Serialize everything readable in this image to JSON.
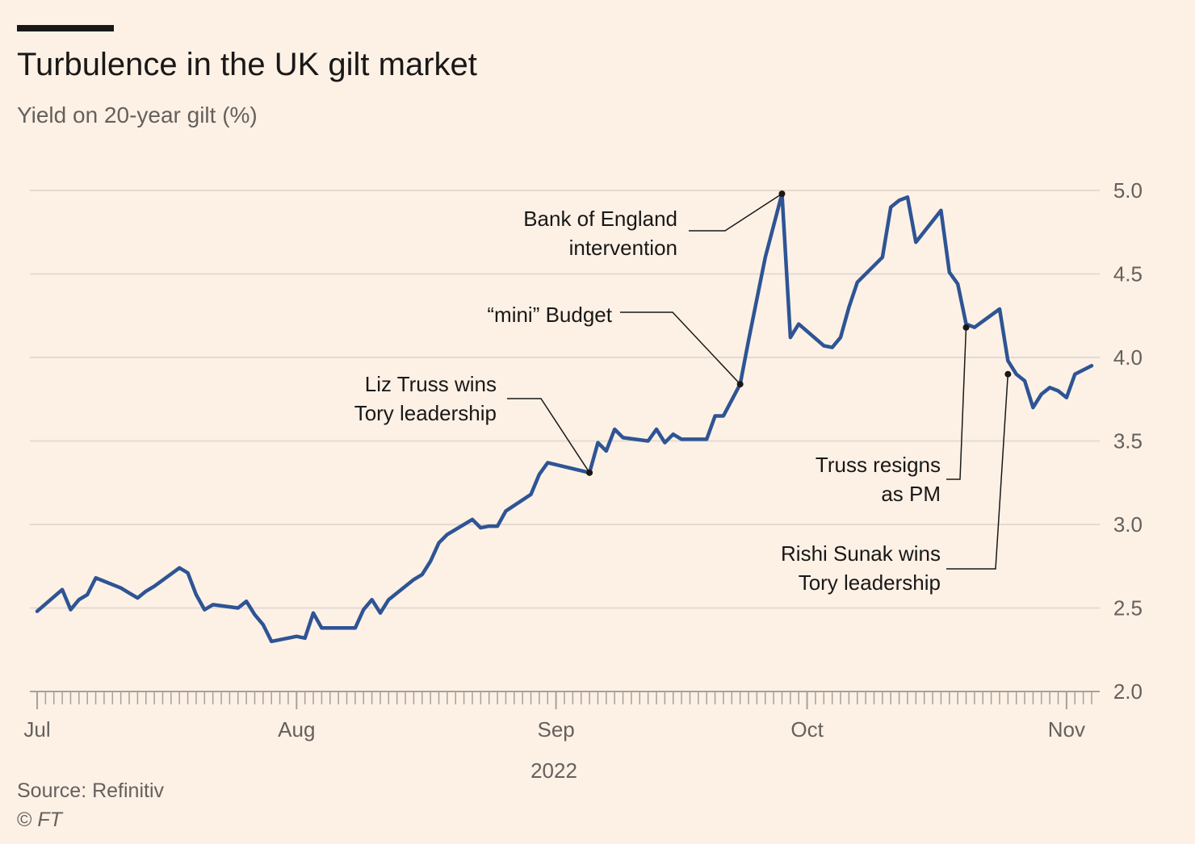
{
  "header": {
    "title": "Turbulence in the UK gilt market",
    "subtitle": "Yield on 20-year gilt (%)"
  },
  "footer": {
    "source": "Source: Refinitiv",
    "copyright_symbol": "©",
    "copyright_name": "FT"
  },
  "colors": {
    "background": "#fdf1e6",
    "line": "#2e5494",
    "grid": "#e3dad1",
    "axis": "#a8a09a"
  },
  "chart_data": {
    "type": "line",
    "title": "Turbulence in the UK gilt market",
    "ylabel": "Yield on 20-year gilt (%)",
    "xlabel": "2022",
    "ylim": [
      2.0,
      5.0
    ],
    "yticks": [
      2.0,
      2.5,
      3.0,
      3.5,
      4.0,
      4.5,
      5.0
    ],
    "ytick_labels": [
      "2.0",
      "2.5",
      "3.0",
      "3.5",
      "4.0",
      "4.5",
      "5.0"
    ],
    "xlim": [
      "2022-07-01",
      "2022-11-04"
    ],
    "xticks": [
      {
        "date": "2022-07-01",
        "label": "Jul"
      },
      {
        "date": "2022-08-01",
        "label": "Aug"
      },
      {
        "date": "2022-09-01",
        "label": "Sep"
      },
      {
        "date": "2022-10-01",
        "label": "Oct"
      },
      {
        "date": "2022-11-01",
        "label": "Nov"
      }
    ],
    "grid": true,
    "series": [
      {
        "points": [
          [
            "2022-07-01",
            2.48
          ],
          [
            "2022-07-04",
            2.61
          ],
          [
            "2022-07-05",
            2.49
          ],
          [
            "2022-07-06",
            2.55
          ],
          [
            "2022-07-07",
            2.58
          ],
          [
            "2022-07-08",
            2.68
          ],
          [
            "2022-07-11",
            2.62
          ],
          [
            "2022-07-12",
            2.59
          ],
          [
            "2022-07-13",
            2.56
          ],
          [
            "2022-07-14",
            2.6
          ],
          [
            "2022-07-15",
            2.63
          ],
          [
            "2022-07-18",
            2.74
          ],
          [
            "2022-07-19",
            2.71
          ],
          [
            "2022-07-20",
            2.58
          ],
          [
            "2022-07-21",
            2.49
          ],
          [
            "2022-07-22",
            2.52
          ],
          [
            "2022-07-25",
            2.5
          ],
          [
            "2022-07-26",
            2.54
          ],
          [
            "2022-07-27",
            2.46
          ],
          [
            "2022-07-28",
            2.4
          ],
          [
            "2022-07-29",
            2.3
          ],
          [
            "2022-08-01",
            2.33
          ],
          [
            "2022-08-02",
            2.32
          ],
          [
            "2022-08-03",
            2.47
          ],
          [
            "2022-08-04",
            2.38
          ],
          [
            "2022-08-05",
            2.38
          ],
          [
            "2022-08-08",
            2.38
          ],
          [
            "2022-08-09",
            2.49
          ],
          [
            "2022-08-10",
            2.55
          ],
          [
            "2022-08-11",
            2.47
          ],
          [
            "2022-08-12",
            2.55
          ],
          [
            "2022-08-15",
            2.67
          ],
          [
            "2022-08-16",
            2.7
          ],
          [
            "2022-08-17",
            2.78
          ],
          [
            "2022-08-18",
            2.89
          ],
          [
            "2022-08-19",
            2.94
          ],
          [
            "2022-08-22",
            3.03
          ],
          [
            "2022-08-23",
            2.98
          ],
          [
            "2022-08-24",
            2.99
          ],
          [
            "2022-08-25",
            2.99
          ],
          [
            "2022-08-26",
            3.08
          ],
          [
            "2022-08-29",
            3.18
          ],
          [
            "2022-08-30",
            3.3
          ],
          [
            "2022-08-31",
            3.37
          ],
          [
            "2022-09-05",
            3.31
          ],
          [
            "2022-09-06",
            3.49
          ],
          [
            "2022-09-07",
            3.44
          ],
          [
            "2022-09-08",
            3.57
          ],
          [
            "2022-09-09",
            3.52
          ],
          [
            "2022-09-12",
            3.5
          ],
          [
            "2022-09-13",
            3.57
          ],
          [
            "2022-09-14",
            3.49
          ],
          [
            "2022-09-15",
            3.54
          ],
          [
            "2022-09-16",
            3.51
          ],
          [
            "2022-09-19",
            3.51
          ],
          [
            "2022-09-20",
            3.65
          ],
          [
            "2022-09-21",
            3.65
          ],
          [
            "2022-09-23",
            3.84
          ],
          [
            "2022-09-24",
            4.1
          ],
          [
            "2022-09-26",
            4.6
          ],
          [
            "2022-09-28",
            4.98
          ],
          [
            "2022-09-29",
            4.12
          ],
          [
            "2022-09-30",
            4.2
          ],
          [
            "2022-10-03",
            4.07
          ],
          [
            "2022-10-04",
            4.06
          ],
          [
            "2022-10-05",
            4.12
          ],
          [
            "2022-10-06",
            4.3
          ],
          [
            "2022-10-07",
            4.45
          ],
          [
            "2022-10-10",
            4.6
          ],
          [
            "2022-10-11",
            4.9
          ],
          [
            "2022-10-12",
            4.94
          ],
          [
            "2022-10-13",
            4.96
          ],
          [
            "2022-10-14",
            4.69
          ],
          [
            "2022-10-17",
            4.88
          ],
          [
            "2022-10-18",
            4.51
          ],
          [
            "2022-10-19",
            4.44
          ],
          [
            "2022-10-20",
            4.2
          ],
          [
            "2022-10-21",
            4.18
          ],
          [
            "2022-10-24",
            4.29
          ],
          [
            "2022-10-25",
            3.98
          ],
          [
            "2022-10-26",
            3.9
          ],
          [
            "2022-10-27",
            3.86
          ],
          [
            "2022-10-28",
            3.7
          ],
          [
            "2022-10-29",
            3.78
          ],
          [
            "2022-10-30",
            3.82
          ],
          [
            "2022-10-31",
            3.8
          ],
          [
            "2022-11-01",
            3.76
          ],
          [
            "2022-11-02",
            3.9
          ],
          [
            "2022-11-04",
            3.95
          ]
        ]
      }
    ],
    "annotations": [
      {
        "date": "2022-09-05",
        "value": 3.31,
        "lines": [
          "Liz Truss wins",
          "Tory leadership"
        ]
      },
      {
        "date": "2022-09-23",
        "value": 3.84,
        "lines": [
          "“mini” Budget"
        ]
      },
      {
        "date": "2022-09-28",
        "value": 4.98,
        "lines": [
          "Bank of England",
          "intervention"
        ]
      },
      {
        "date": "2022-10-20",
        "value": 4.18,
        "lines": [
          "Truss resigns",
          "as PM"
        ]
      },
      {
        "date": "2022-10-25",
        "value": 3.9,
        "lines": [
          "Rishi Sunak wins",
          "Tory leadership"
        ]
      }
    ]
  }
}
